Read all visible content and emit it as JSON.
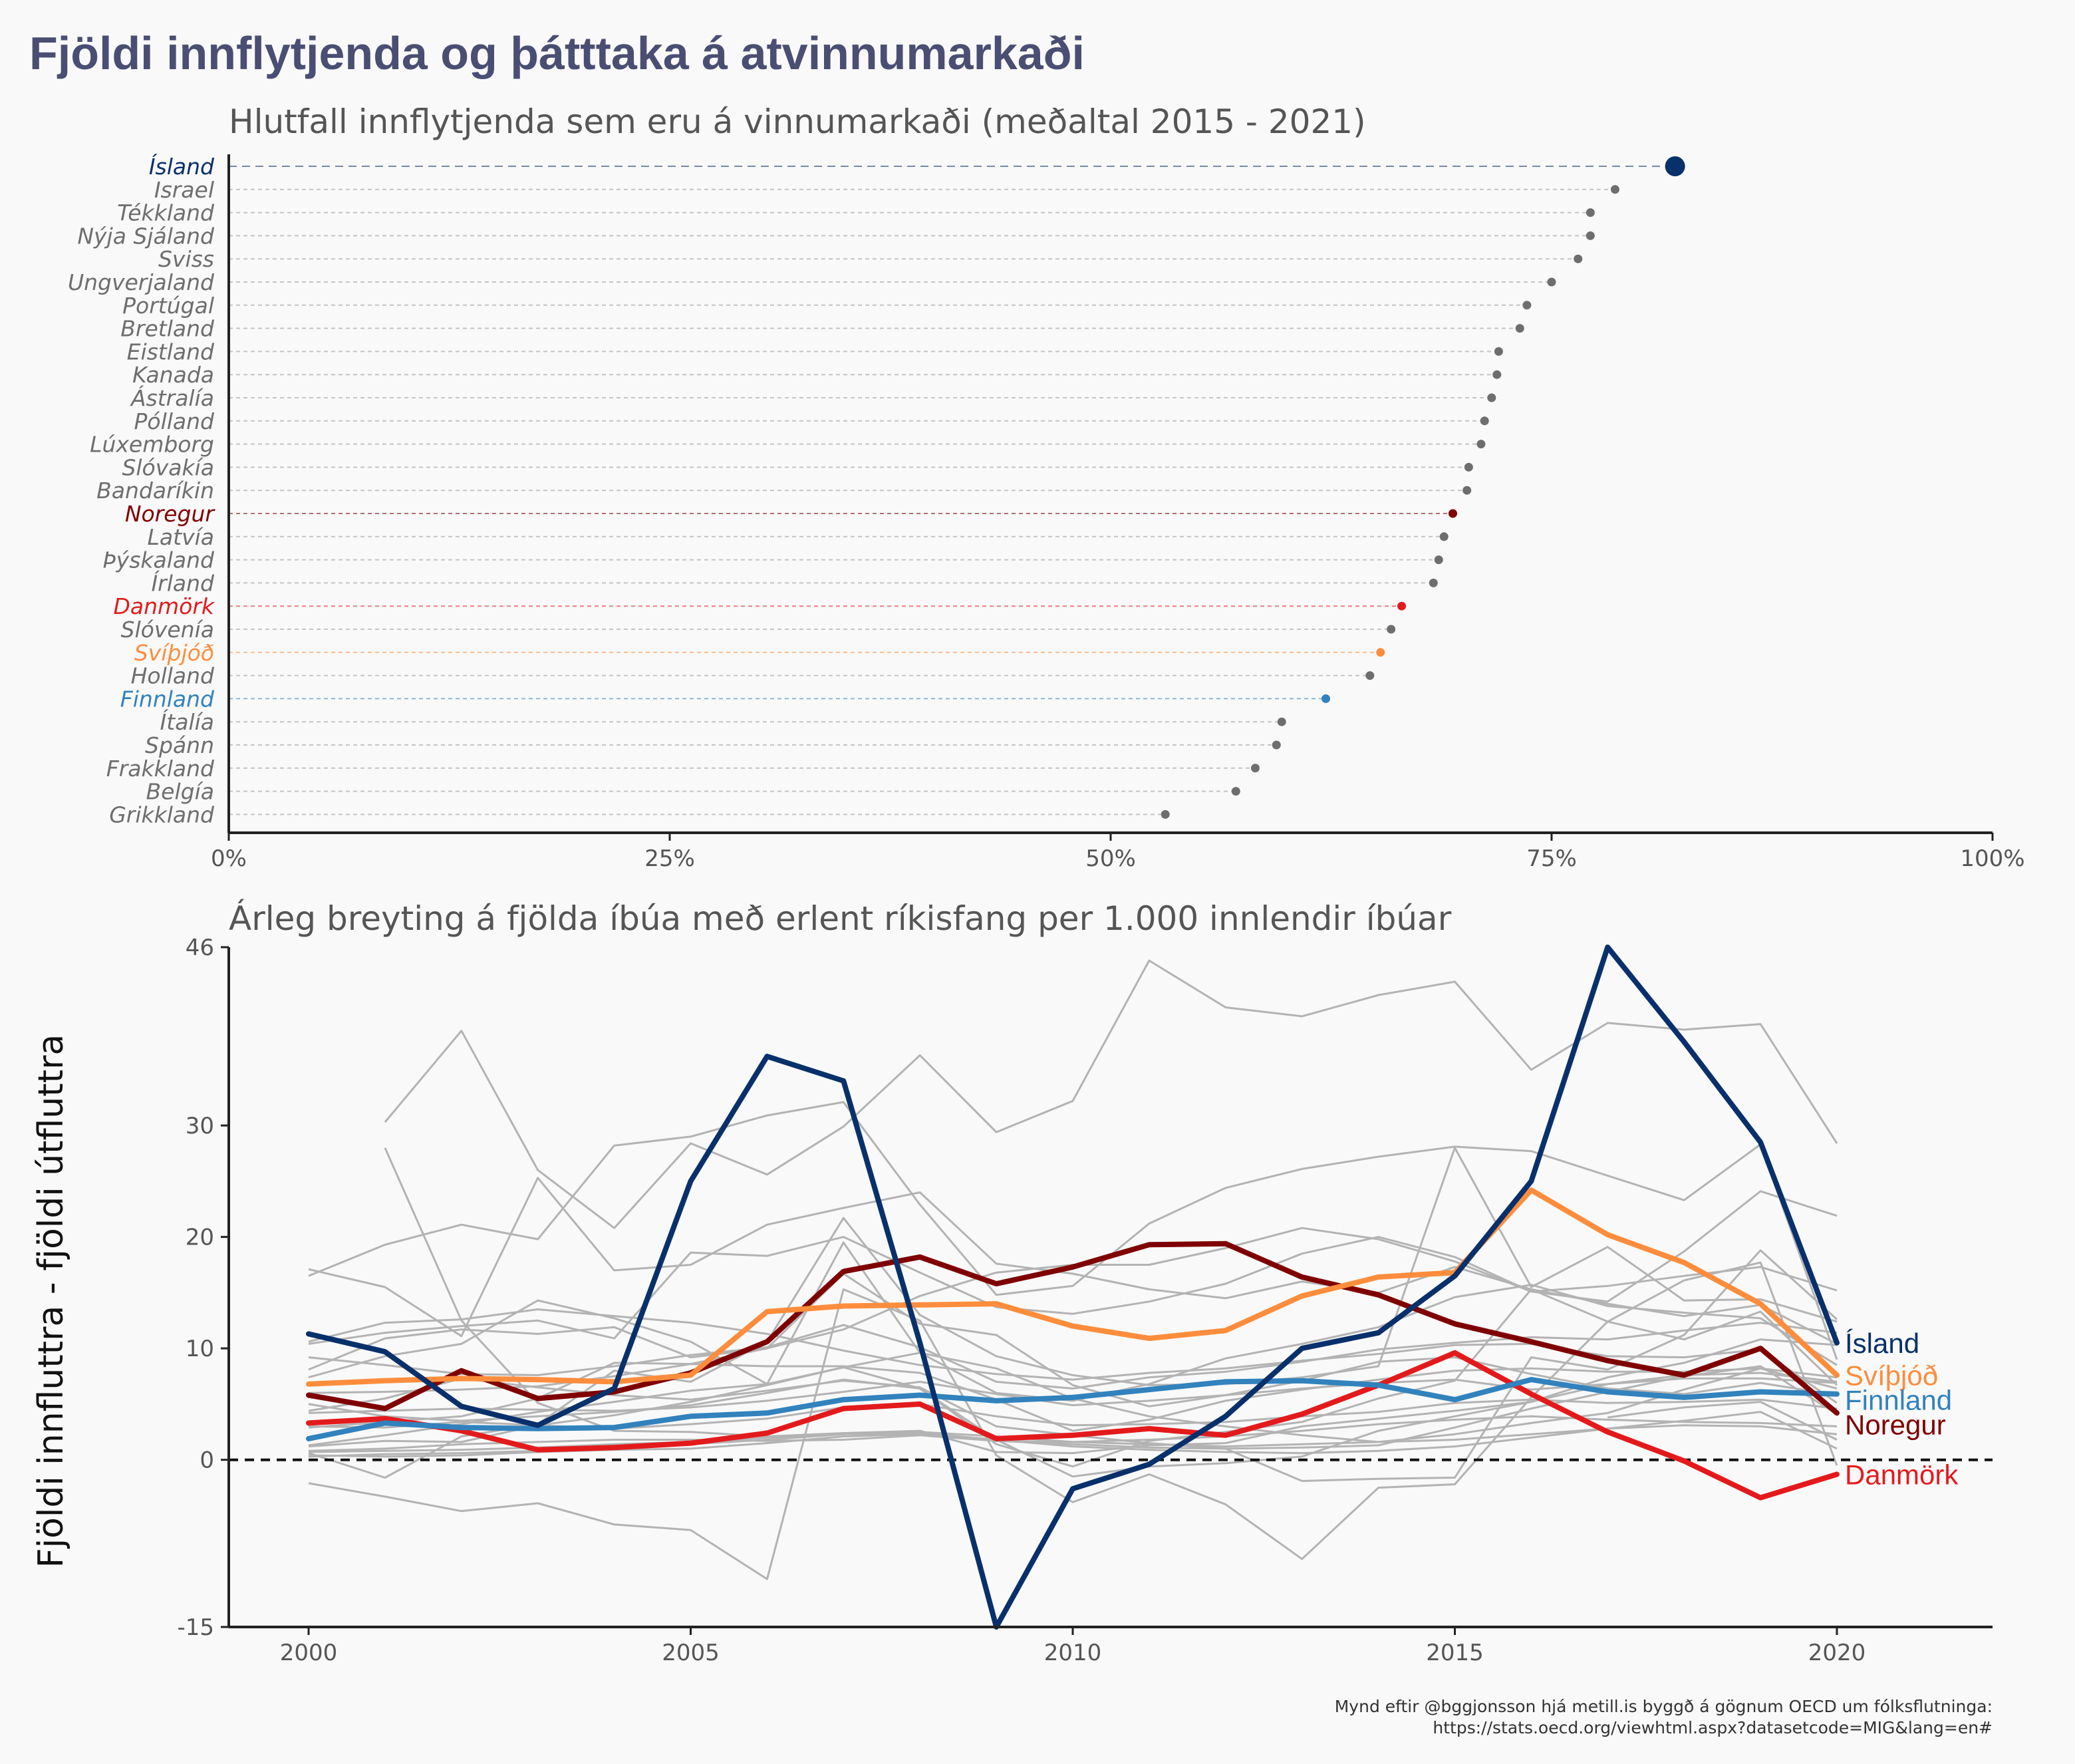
{
  "title": "Fjöldi innflytjenda og þátttaka á atvinnumarkaði",
  "caption": {
    "line1": "Mynd eftir @bggjonsson hjá metill.is byggð á gögnum OECD um fólksflutninga:",
    "line2": "https://stats.oecd.org/viewhtml.aspx?datasetcode=MIG&lang=en#"
  },
  "colors": {
    "Ísland": "#08306b",
    "Svíþjóð": "#fd8d3c",
    "Finnland": "#3182bd",
    "Noregur": "#7f0000",
    "Danmörk": "#e31a1c",
    "other": "#6e6e6e",
    "background_line": "#b3b3b3"
  },
  "chart_data": [
    {
      "type": "scatter",
      "subtitle": "Hlutfall innflytjenda sem eru á vinnumarkaði (meðaltal 2015 - 2021)",
      "xlim": [
        0,
        1
      ],
      "xticks": [
        0,
        0.25,
        0.5,
        0.75,
        1
      ],
      "xtick_labels": [
        "0%",
        "25%",
        "50%",
        "75%",
        "100%"
      ],
      "grid": false,
      "highlight": [
        "Ísland",
        "Noregur",
        "Danmörk",
        "Svíþjóð",
        "Finnland"
      ],
      "points": [
        {
          "country": "Ísland",
          "value": 0.82
        },
        {
          "country": "Israel",
          "value": 0.786
        },
        {
          "country": "Tékkland",
          "value": 0.772
        },
        {
          "country": "Nýja Sjáland",
          "value": 0.772
        },
        {
          "country": "Sviss",
          "value": 0.765
        },
        {
          "country": "Ungverjaland",
          "value": 0.75
        },
        {
          "country": "Portúgal",
          "value": 0.736
        },
        {
          "country": "Bretland",
          "value": 0.732
        },
        {
          "country": "Eistland",
          "value": 0.72
        },
        {
          "country": "Kanada",
          "value": 0.719
        },
        {
          "country": "Ástralía",
          "value": 0.716
        },
        {
          "country": "Pólland",
          "value": 0.712
        },
        {
          "country": "Lúxemborg",
          "value": 0.71
        },
        {
          "country": "Slóvakía",
          "value": 0.703
        },
        {
          "country": "Bandaríkin",
          "value": 0.702
        },
        {
          "country": "Noregur",
          "value": 0.694
        },
        {
          "country": "Latvía",
          "value": 0.689
        },
        {
          "country": "Þýskaland",
          "value": 0.686
        },
        {
          "country": "Írland",
          "value": 0.683
        },
        {
          "country": "Danmörk",
          "value": 0.665
        },
        {
          "country": "Slóvenía",
          "value": 0.659
        },
        {
          "country": "Svíþjóð",
          "value": 0.653
        },
        {
          "country": "Holland",
          "value": 0.647
        },
        {
          "country": "Finnland",
          "value": 0.622
        },
        {
          "country": "Ítalía",
          "value": 0.597
        },
        {
          "country": "Spánn",
          "value": 0.594
        },
        {
          "country": "Frakkland",
          "value": 0.582
        },
        {
          "country": "Belgía",
          "value": 0.571
        },
        {
          "country": "Grikkland",
          "value": 0.531
        }
      ]
    },
    {
      "type": "line",
      "subtitle": "Árleg breyting á fjölda íbúa með erlent ríkisfang per 1.000 innlendir íbúar",
      "ylabel": "Fjöldi innfluttra - fjöldi útfluttra",
      "xlim": [
        2000,
        2020
      ],
      "ylim": [
        -15,
        46
      ],
      "xticks": [
        2000,
        2005,
        2010,
        2015,
        2020
      ],
      "yticks": [
        -15,
        0,
        10,
        20,
        30,
        46
      ],
      "reference_line": 0,
      "x": [
        2000,
        2001,
        2002,
        2003,
        2004,
        2005,
        2006,
        2007,
        2008,
        2009,
        2010,
        2011,
        2012,
        2013,
        2014,
        2015,
        2016,
        2017,
        2018,
        2019,
        2020
      ],
      "series": [
        {
          "name": "Ísland",
          "values": [
            11.3,
            9.7,
            4.8,
            3.1,
            6.4,
            25.0,
            36.2,
            34.0,
            10.5,
            -15.0,
            -2.6,
            -0.4,
            3.9,
            10.0,
            11.4,
            16.5,
            25.0,
            46.0,
            37.5,
            28.5,
            10.5
          ]
        },
        {
          "name": "Svíþjóð",
          "values": [
            6.8,
            7.1,
            7.3,
            7.2,
            7.0,
            7.6,
            13.3,
            13.8,
            13.9,
            14.0,
            12.0,
            10.9,
            11.6,
            14.7,
            16.4,
            16.8,
            24.2,
            20.2,
            17.7,
            14.0,
            7.6
          ]
        },
        {
          "name": "Finnland",
          "values": [
            1.9,
            3.3,
            2.9,
            2.8,
            2.9,
            3.9,
            4.2,
            5.4,
            5.8,
            5.3,
            5.6,
            6.3,
            7.0,
            7.1,
            6.7,
            5.4,
            7.2,
            6.1,
            5.6,
            6.1,
            5.9
          ]
        },
        {
          "name": "Noregur",
          "values": [
            5.8,
            4.6,
            8.0,
            5.5,
            6.1,
            7.8,
            10.6,
            16.9,
            18.2,
            15.8,
            17.3,
            19.3,
            19.4,
            16.4,
            14.8,
            12.2,
            10.6,
            8.9,
            7.6,
            10.0,
            4.2
          ]
        },
        {
          "name": "Danmörk",
          "values": [
            3.3,
            3.7,
            2.6,
            0.9,
            1.1,
            1.5,
            2.4,
            4.6,
            5.0,
            1.9,
            2.2,
            2.8,
            2.2,
            4.1,
            6.7,
            9.6,
            5.9,
            2.5,
            -0.1,
            -3.4,
            -1.3
          ]
        }
      ],
      "background_series_count": 24,
      "background_series": [
        [
          16.5,
          19.3,
          21.1,
          19.8,
          28.2,
          29.0,
          30.9,
          32.1,
          22.9,
          14.8,
          15.6,
          21.2,
          24.4,
          26.1,
          27.2,
          28.1,
          27.7,
          25.5,
          23.3,
          28.3,
          9.0
        ],
        [
          null,
          30.3,
          38.5,
          26.0,
          20.8,
          28.4,
          25.6,
          29.9,
          36.3,
          29.4,
          32.2,
          44.8,
          40.6,
          39.8,
          41.7,
          42.9,
          35.0,
          39.2,
          38.6,
          39.1,
          28.4
        ],
        [
          null,
          28.0,
          12.5,
          5.1,
          2.6,
          2.5,
          2.1,
          2.4,
          2.6,
          0.7,
          0.6,
          1.3,
          1.5,
          3.0,
          3.7,
          4.4,
          5.2,
          7.4,
          8.7,
          10.8,
          10.3
        ],
        [
          17.1,
          15.5,
          11.1,
          25.3,
          17.0,
          17.5,
          21.1,
          22.6,
          24.0,
          17.6,
          16.7,
          15.3,
          14.5,
          16.0,
          15.0,
          17.3,
          15.3,
          14.0,
          12.9,
          13.9,
          10.4
        ],
        [
          10.4,
          11.4,
          12.0,
          12.5,
          10.9,
          18.6,
          18.3,
          20.0,
          16.8,
          13.7,
          13.1,
          14.2,
          15.8,
          18.5,
          20.0,
          18.2,
          15.1,
          15.6,
          16.5,
          17.3,
          15.2
        ],
        [
          10.6,
          12.3,
          12.6,
          13.5,
          12.9,
          12.3,
          11.3,
          9.8,
          8.5,
          7.7,
          7.2,
          7.8,
          8.2,
          8.9,
          9.5,
          10.3,
          10.4,
          9.3,
          9.2,
          9.9,
          5.1
        ],
        [
          8.1,
          10.9,
          11.7,
          11.3,
          11.9,
          9.2,
          10.0,
          16.7,
          12.2,
          11.2,
          6.7,
          4.8,
          5.8,
          7.1,
          8.8,
          9.2,
          7.7,
          6.4,
          5.9,
          6.9,
          5.8
        ],
        [
          7.4,
          9.3,
          10.4,
          14.3,
          12.7,
          10.6,
          6.8,
          19.5,
          9.6,
          6.0,
          5.3,
          6.8,
          9.1,
          10.4,
          11.9,
          14.6,
          15.7,
          13.8,
          13.2,
          12.7,
          8.5
        ],
        [
          6.0,
          6.1,
          6.3,
          6.6,
          7.5,
          8.6,
          8.4,
          8.4,
          7.8,
          5.4,
          2.6,
          3.6,
          5.3,
          6.3,
          7.2,
          8.0,
          8.2,
          7.9,
          7.9,
          8.2,
          6.4
        ],
        [
          4.2,
          4.4,
          4.6,
          4.5,
          4.4,
          4.7,
          5.3,
          6.1,
          7.0,
          5.9,
          4.9,
          5.3,
          5.8,
          6.4,
          6.9,
          7.2,
          6.3,
          6.8,
          7.3,
          7.3,
          6.9
        ],
        [
          3.0,
          2.9,
          3.4,
          3.1,
          2.8,
          3.2,
          3.7,
          4.7,
          5.0,
          3.9,
          3.1,
          3.2,
          3.4,
          3.9,
          4.3,
          5.1,
          5.4,
          5.1,
          5.2,
          5.4,
          4.6
        ],
        [
          1.2,
          1.7,
          1.6,
          3.1,
          4.0,
          5.2,
          6.7,
          8.3,
          9.6,
          8.2,
          5.5,
          3.9,
          3.0,
          2.2,
          1.6,
          2.3,
          3.3,
          4.2,
          6.3,
          8.2,
          7.4
        ],
        [
          0.7,
          0.8,
          0.9,
          1.1,
          1.4,
          1.6,
          2.0,
          2.3,
          2.5,
          2.1,
          1.6,
          1.4,
          1.2,
          1.4,
          1.6,
          1.8,
          2.3,
          2.8,
          3.1,
          3.0,
          2.3
        ],
        [
          0.8,
          1.0,
          1.4,
          1.6,
          1.8,
          1.8,
          1.7,
          1.8,
          2.2,
          1.7,
          1.4,
          1.1,
          1.0,
          1.1,
          1.3,
          2.9,
          4.6,
          6.1,
          7.5,
          8.4,
          4.1
        ],
        [
          0.3,
          0.5,
          0.6,
          0.8,
          1.2,
          1.4,
          1.8,
          2.3,
          2.4,
          1.8,
          1.2,
          0.9,
          0.7,
          0.6,
          0.8,
          1.2,
          2.0,
          2.8,
          3.5,
          4.3,
          1.0
        ],
        [
          -2.1,
          -3.3,
          -4.6,
          -3.9,
          -5.8,
          -6.3,
          -10.7,
          15.3,
          12.5,
          0.4,
          -3.8,
          -1.3,
          -4.0,
          -8.9,
          -2.5,
          -2.2,
          5.6,
          12.4,
          16.1,
          17.7,
          -0.5
        ],
        [
          5.0,
          3.9,
          3.5,
          3.9,
          4.3,
          4.9,
          6.0,
          7.2,
          6.4,
          1.8,
          -1.5,
          -0.6,
          -0.3,
          0.3,
          2.6,
          3.9,
          5.2,
          6.8,
          7.6,
          7.8,
          7.0
        ],
        [
          0.6,
          -1.6,
          2.1,
          3.2,
          8.0,
          7.0,
          10.6,
          21.7,
          13.0,
          9.3,
          7.6,
          6.7,
          6.8,
          7.4,
          8.4,
          28.0,
          15.5,
          19.1,
          14.3,
          14.4,
          12.4
        ],
        [
          9.2,
          8.5,
          7.7,
          7.6,
          8.4,
          9.4,
          10.1,
          12.1,
          10.1,
          7.0,
          6.4,
          7.4,
          7.9,
          8.8,
          9.9,
          10.5,
          11.0,
          10.8,
          11.6,
          12.3,
          11.4
        ],
        [
          1.3,
          2.2,
          3.2,
          4.3,
          5.2,
          6.2,
          6.8,
          8.3,
          6.4,
          1.4,
          -0.6,
          1.7,
          2.5,
          3.4,
          5.5,
          7.1,
          15.3,
          12.4,
          10.8,
          13.3,
          6.7
        ],
        [
          4.4,
          5.5,
          7.3,
          6.5,
          5.8,
          5.4,
          6.2,
          7.1,
          6.5,
          3.0,
          2.2,
          1.5,
          1.0,
          -1.9,
          -1.7,
          -1.6,
          9.2,
          8.1,
          11.2,
          18.8,
          12.6
        ],
        [
          2.9,
          3.4,
          3.9,
          5.5,
          8.7,
          8.6,
          10.0,
          11.7,
          14.7,
          16.8,
          17.5,
          17.5,
          19.0,
          20.8,
          19.8,
          17.8,
          15.1,
          14.2,
          18.7,
          24.1,
          21.9
        ],
        [
          null,
          null,
          null,
          null,
          null,
          null,
          null,
          null,
          null,
          null,
          null,
          null,
          null,
          null,
          null,
          null,
          null,
          3.8,
          4.7,
          5.2,
          1.8
        ],
        [
          0.4,
          0.3,
          0.4,
          0.7,
          0.9,
          1.0,
          1.5,
          2.1,
          2.3,
          1.7,
          1.6,
          1.8,
          2.1,
          2.6,
          3.2,
          3.6,
          3.9,
          3.6,
          3.4,
          3.3,
          3.0
        ]
      ]
    }
  ]
}
